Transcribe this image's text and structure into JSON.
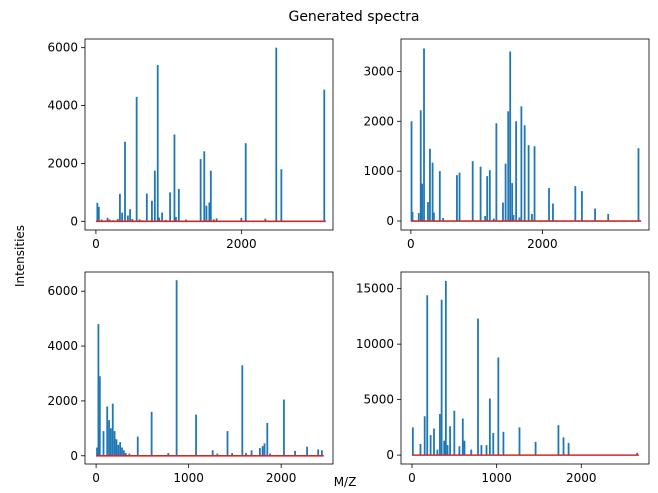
{
  "figure": {
    "suptitle": "Generated spectra",
    "xlabel": "M/Z",
    "ylabel": "Intensities",
    "bar_color": "#1f77b4",
    "baseline_color": "#d62728"
  },
  "chart_data": [
    {
      "type": "bar",
      "xlim": [
        -150,
        3260
      ],
      "ylim": [
        -300,
        6300
      ],
      "xticks": [
        0,
        2000
      ],
      "yticks": [
        0,
        2000,
        4000,
        6000
      ],
      "baseline": [
        0,
        3160
      ],
      "x": [
        20,
        40,
        80,
        160,
        190,
        240,
        300,
        330,
        360,
        400,
        440,
        470,
        500,
        560,
        600,
        640,
        700,
        770,
        810,
        850,
        870,
        910,
        960,
        1020,
        1080,
        1100,
        1140,
        1240,
        1440,
        1490,
        1520,
        1560,
        1580,
        1620,
        1660,
        2000,
        2060,
        2330,
        2480,
        2550,
        3140
      ],
      "values": [
        640,
        500,
        60,
        120,
        60,
        40,
        80,
        950,
        300,
        2750,
        200,
        420,
        80,
        4300,
        70,
        40,
        960,
        710,
        1750,
        5400,
        130,
        300,
        50,
        1000,
        3000,
        150,
        1120,
        60,
        2150,
        2420,
        540,
        650,
        1750,
        70,
        100,
        120,
        2700,
        90,
        6000,
        1800,
        4550
      ]
    },
    {
      "type": "bar",
      "xlim": [
        -150,
        3620
      ],
      "ylim": [
        -180,
        3650
      ],
      "xticks": [
        0,
        2000
      ],
      "yticks": [
        0,
        1000,
        2000,
        3000
      ],
      "baseline": [
        0,
        3500
      ],
      "x": [
        10,
        25,
        120,
        150,
        170,
        200,
        260,
        290,
        330,
        350,
        440,
        490,
        700,
        740,
        940,
        1060,
        1130,
        1160,
        1200,
        1260,
        1300,
        1400,
        1440,
        1480,
        1510,
        1540,
        1560,
        1600,
        1650,
        1680,
        1730,
        1790,
        1840,
        1880,
        2100,
        2160,
        2500,
        2600,
        2800,
        3000,
        3460
      ],
      "values": [
        2000,
        180,
        160,
        2220,
        750,
        3460,
        380,
        1450,
        1170,
        170,
        1000,
        60,
        920,
        970,
        1200,
        1090,
        100,
        900,
        1020,
        50,
        1960,
        370,
        1150,
        2200,
        3400,
        760,
        120,
        2000,
        70,
        2300,
        1920,
        1520,
        140,
        1500,
        660,
        350,
        700,
        600,
        250,
        140,
        1460
      ]
    },
    {
      "type": "bar",
      "xlim": [
        -120,
        2560
      ],
      "ylim": [
        -300,
        6700
      ],
      "xticks": [
        0,
        1000,
        2000
      ],
      "yticks": [
        0,
        2000,
        4000,
        6000
      ],
      "baseline": [
        0,
        2460
      ],
      "x": [
        10,
        25,
        40,
        80,
        120,
        140,
        160,
        180,
        200,
        220,
        240,
        260,
        280,
        300,
        320,
        360,
        450,
        600,
        780,
        870,
        1080,
        1260,
        1310,
        1420,
        1470,
        1580,
        1620,
        1680,
        1770,
        1800,
        1820,
        1850,
        1880,
        2030,
        2150,
        2280,
        2400,
        2440
      ],
      "values": [
        300,
        4800,
        2900,
        900,
        1800,
        1300,
        1000,
        1900,
        900,
        600,
        400,
        500,
        300,
        200,
        100,
        80,
        700,
        1600,
        100,
        6400,
        1500,
        200,
        80,
        900,
        100,
        3300,
        100,
        200,
        280,
        350,
        450,
        1200,
        80,
        2050,
        180,
        330,
        230,
        200
      ]
    },
    {
      "type": "bar",
      "xlim": [
        -130,
        2800
      ],
      "ylim": [
        -800,
        16500
      ],
      "xticks": [
        0,
        1000,
        2000
      ],
      "yticks": [
        0,
        5000,
        10000,
        15000
      ],
      "baseline": [
        0,
        2680
      ],
      "x": [
        10,
        100,
        150,
        180,
        220,
        260,
        300,
        330,
        350,
        380,
        400,
        420,
        450,
        500,
        560,
        600,
        620,
        700,
        780,
        820,
        880,
        920,
        960,
        1020,
        1080,
        1270,
        1460,
        1730,
        1790,
        1850,
        2660
      ],
      "values": [
        2500,
        1000,
        3500,
        14400,
        1800,
        2400,
        500,
        3700,
        14000,
        1300,
        15700,
        900,
        2600,
        4000,
        800,
        3300,
        1300,
        500,
        12300,
        900,
        900,
        5100,
        2000,
        8800,
        2100,
        2500,
        1200,
        2700,
        1600,
        1100,
        200
      ]
    }
  ]
}
